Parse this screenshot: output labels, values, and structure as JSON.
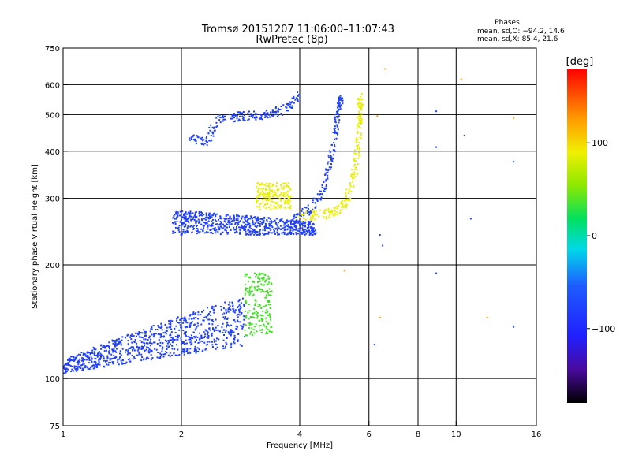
{
  "chart_data": {
    "type": "scatter",
    "title": "Tromsø 20151207 11:06:00–11:07:43",
    "subtitle": "RwPretec (8p)",
    "xlabel": "Frequency [MHz]",
    "ylabel": "Stationary phase Virtual Height [km]",
    "x_scale": "log",
    "y_scale": "log",
    "xlim": [
      1,
      16
    ],
    "ylim": [
      75,
      750
    ],
    "x_ticks": [
      1,
      2,
      4,
      6,
      8,
      10,
      16
    ],
    "x_tick_labels": [
      "1",
      "2",
      "4",
      "6",
      "8",
      "10",
      "16"
    ],
    "x_grid": [
      2,
      4,
      6,
      8,
      10
    ],
    "y_ticks": [
      75,
      100,
      200,
      300,
      400,
      500,
      600,
      750
    ],
    "y_tick_labels": [
      "75",
      "100",
      "200",
      "300",
      "400",
      "500",
      "600",
      "750"
    ],
    "y_grid": [
      100,
      200,
      300,
      400,
      500,
      600
    ],
    "phases_box": {
      "title": "Phases",
      "line_o": "mean, sd,O: −94.2, 14.6",
      "line_x": "mean, sd,X:  85.4, 21.6"
    },
    "colorbar": {
      "label": "[deg]",
      "range": [
        -180,
        180
      ],
      "ticks": [
        100,
        0,
        -100
      ],
      "tick_labels": [
        "100",
        "0",
        "−100"
      ]
    },
    "colors": {
      "blue": "#1f3fff",
      "green": "#39e01a",
      "yellow": "#e8f000",
      "orange": "#ff9a00",
      "red": "#ff2a00",
      "cyan": "#00d8e8"
    },
    "series": [
      {
        "name": "E-region trace",
        "color": "blue",
        "x_range": [
          1.0,
          2.9
        ],
        "y_start": [
          103,
          112
        ],
        "y_end": [
          122,
          165
        ]
      },
      {
        "name": "Lower F trace",
        "color": "blue",
        "x_range": [
          1.9,
          4.4
        ],
        "y_base": 240,
        "y_spread": 40
      },
      {
        "name": "O-mode F2 trace",
        "color": "blue",
        "points": [
          [
            3.8,
            262
          ],
          [
            4.3,
            282
          ],
          [
            4.6,
            320
          ],
          [
            4.8,
            380
          ],
          [
            4.95,
            450
          ],
          [
            5.0,
            520
          ],
          [
            5.1,
            560
          ]
        ]
      },
      {
        "name": "Upper scatter",
        "color": "blue",
        "points": [
          [
            2.1,
            440
          ],
          [
            2.3,
            420
          ],
          [
            2.5,
            490
          ],
          [
            2.8,
            495
          ],
          [
            3.1,
            500
          ],
          [
            3.4,
            500
          ],
          [
            3.7,
            520
          ],
          [
            4.0,
            560
          ]
        ]
      },
      {
        "name": "X-mode trace",
        "color": "yellow",
        "points": [
          [
            4.0,
            268
          ],
          [
            4.6,
            272
          ],
          [
            5.0,
            280
          ],
          [
            5.3,
            300
          ],
          [
            5.55,
            360
          ],
          [
            5.65,
            430
          ],
          [
            5.7,
            500
          ],
          [
            5.72,
            560
          ]
        ]
      },
      {
        "name": "Patch near 3.2 MHz",
        "color": "green",
        "x_range": [
          2.9,
          3.4
        ],
        "y_range": [
          130,
          190
        ]
      },
      {
        "name": "Patch near 3.3 MHz high",
        "color": "yellow",
        "x_range": [
          3.1,
          3.8
        ],
        "y_range": [
          280,
          330
        ]
      },
      {
        "name": "Sparse points",
        "color": "blue",
        "points": [
          [
            6.4,
            240
          ],
          [
            6.5,
            225
          ],
          [
            8.9,
            510
          ],
          [
            8.9,
            410
          ],
          [
            10.5,
            440
          ],
          [
            10.9,
            265
          ],
          [
            14.0,
            375
          ],
          [
            14.0,
            137
          ],
          [
            6.2,
            123
          ],
          [
            8.9,
            190
          ]
        ]
      },
      {
        "name": "Sparse warm points",
        "color": "orange",
        "points": [
          [
            6.6,
            660
          ],
          [
            10.3,
            620
          ],
          [
            12.0,
            145
          ],
          [
            14.0,
            490
          ],
          [
            6.3,
            495
          ],
          [
            5.2,
            193
          ],
          [
            6.4,
            145
          ]
        ]
      }
    ]
  }
}
